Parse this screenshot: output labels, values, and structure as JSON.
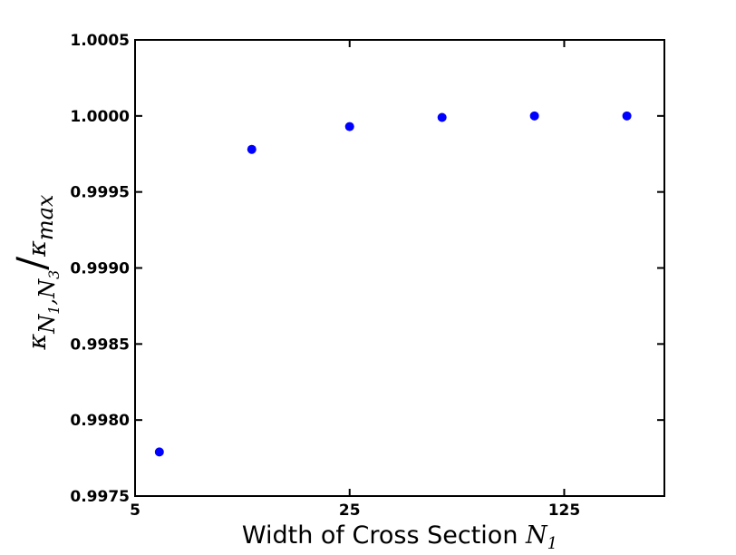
{
  "chart_data": {
    "type": "scatter",
    "title": "",
    "xlabel": "Width of Cross Section N₁",
    "xlabel_parts": {
      "text": "Width of Cross Section ",
      "symbol": "N",
      "subscript": "1"
    },
    "ylabel": "κ_{N1,N3} / κ_max",
    "ylabel_parts": {
      "kappa": "κ",
      "sub_n1": "N",
      "sub_1": "1",
      "comma": ",",
      "sub_n3": "N",
      "sub_3": "3",
      "slash": "/",
      "max": "max"
    },
    "x_scale": "log",
    "xlim": [
      5,
      265
    ],
    "ylim": [
      0.9975,
      1.0005
    ],
    "x_ticks": [
      5,
      25,
      125
    ],
    "x_tick_labels": [
      "5",
      "25",
      "125"
    ],
    "y_ticks": [
      0.9975,
      0.998,
      0.9985,
      0.999,
      0.9995,
      1.0,
      1.0005
    ],
    "y_tick_labels": [
      "0.9975",
      "0.9980",
      "0.9985",
      "0.9990",
      "0.9995",
      "1.0000",
      "1.0005"
    ],
    "grid": false,
    "marker_color": "#0000ff",
    "series": [
      {
        "x": [
          6,
          12,
          25,
          50,
          100,
          200
        ],
        "y": [
          0.99779,
          0.99978,
          0.99993,
          0.99999,
          1.0,
          1.0
        ]
      }
    ]
  }
}
